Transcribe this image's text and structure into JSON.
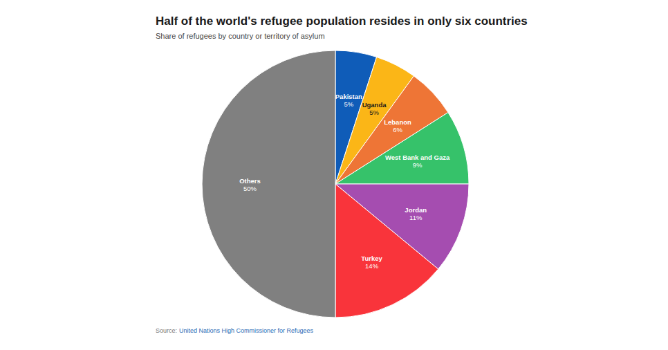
{
  "chart_data": {
    "type": "pie",
    "title": "Half of the world's refugee population resides in only six countries",
    "subtitle": "Share of refugees by country or territory of asylum",
    "source_label": "Source:",
    "source": "United Nations High Commissioner for Refugees",
    "categories": [
      "Pakistan",
      "Uganda",
      "Lebanon",
      "West Bank and Gaza",
      "Jordan",
      "Turkey",
      "Others"
    ],
    "values": [
      5,
      5,
      6,
      9,
      11,
      14,
      50
    ],
    "value_labels": [
      "5%",
      "5%",
      "6%",
      "9%",
      "11%",
      "14%",
      "50%"
    ],
    "colors": [
      "#0f5cb8",
      "#fbb617",
      "#ee7536",
      "#36c26a",
      "#a54db0",
      "#f9343b",
      "#808080"
    ],
    "data_labels": true
  }
}
